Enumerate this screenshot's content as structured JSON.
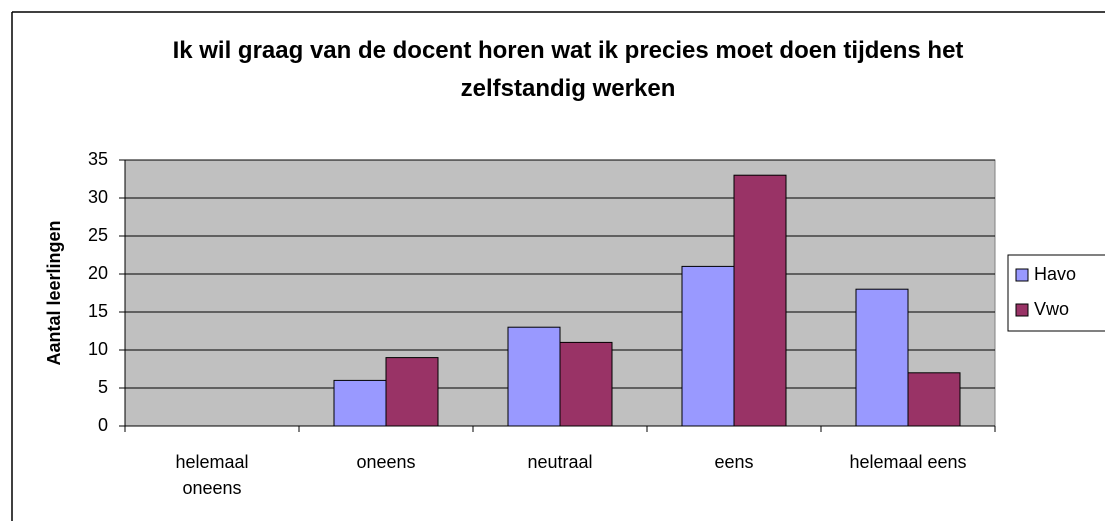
{
  "chart_data": {
    "type": "bar",
    "title": "Ik wil graag van de docent horen wat ik precies moet doen tijdens het zelfstandig werken",
    "y_label": "Aantal leerlingen",
    "categories": [
      "helemaal oneens",
      "oneens",
      "neutraal",
      "eens",
      "helemaal eens"
    ],
    "series": [
      {
        "name": "Havo",
        "color": "#9999ff",
        "values": [
          0,
          6,
          13,
          21,
          18
        ]
      },
      {
        "name": "Vwo",
        "color": "#993366",
        "values": [
          0,
          9,
          11,
          33,
          7
        ]
      }
    ],
    "ylim": [
      0,
      35
    ],
    "yticks": [
      0,
      5,
      10,
      15,
      20,
      25,
      30,
      35
    ],
    "grid": true,
    "legend": "right"
  }
}
